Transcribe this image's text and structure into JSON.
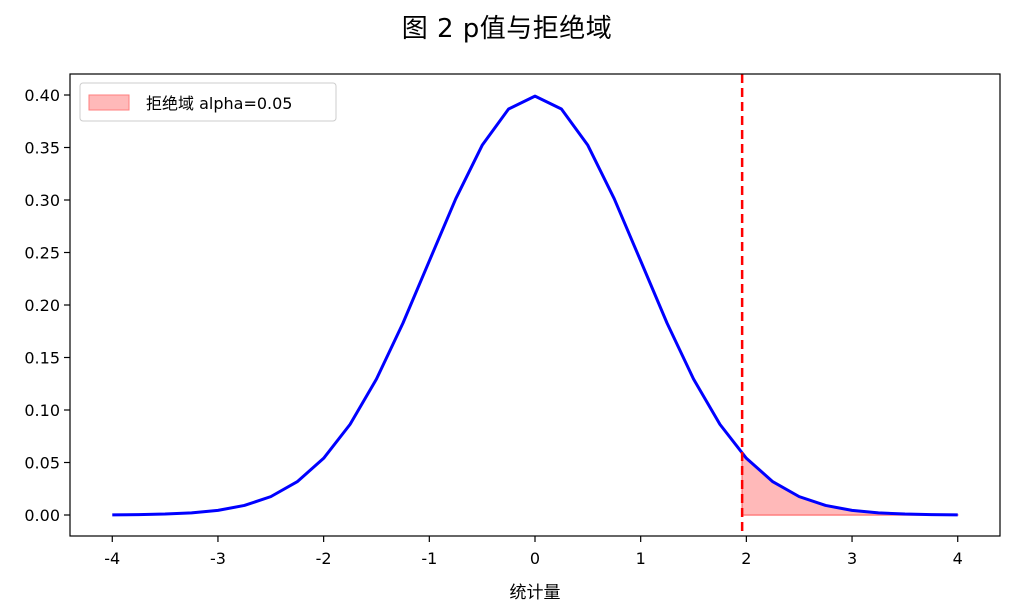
{
  "chart_data": {
    "type": "line",
    "title": "图 2   p值与拒绝域",
    "xlabel": "统计量",
    "ylabel": "",
    "xlim": [
      -4.4,
      4.4
    ],
    "ylim": [
      -0.02,
      0.42
    ],
    "x_ticks": [
      -4,
      -3,
      -2,
      -1,
      0,
      1,
      2,
      3,
      4
    ],
    "x_tick_labels": [
      "-4",
      "-3",
      "-2",
      "-1",
      "0",
      "1",
      "2",
      "3",
      "4"
    ],
    "y_ticks": [
      0.0,
      0.05,
      0.1,
      0.15,
      0.2,
      0.25,
      0.3,
      0.35,
      0.4
    ],
    "y_tick_labels": [
      "0.00",
      "0.05",
      "0.10",
      "0.15",
      "0.20",
      "0.25",
      "0.30",
      "0.35",
      "0.40"
    ],
    "series": [
      {
        "kind": "line",
        "color": "#0000ff",
        "x": [
          -4.0,
          -3.75,
          -3.5,
          -3.25,
          -3.0,
          -2.75,
          -2.5,
          -2.25,
          -2.0,
          -1.75,
          -1.5,
          -1.25,
          -1.0,
          -0.75,
          -0.5,
          -0.25,
          0.0,
          0.25,
          0.5,
          0.75,
          1.0,
          1.25,
          1.5,
          1.75,
          2.0,
          2.25,
          2.5,
          2.75,
          3.0,
          3.25,
          3.5,
          3.75,
          4.0
        ],
        "y": [
          0.0001,
          0.0004,
          0.0009,
          0.002,
          0.0044,
          0.0091,
          0.0175,
          0.0317,
          0.054,
          0.0863,
          0.1295,
          0.1826,
          0.242,
          0.3011,
          0.3521,
          0.3867,
          0.3989,
          0.3867,
          0.3521,
          0.3011,
          0.242,
          0.1826,
          0.1295,
          0.0863,
          0.054,
          0.0317,
          0.0175,
          0.0091,
          0.0044,
          0.002,
          0.0009,
          0.0004,
          0.0001
        ]
      },
      {
        "kind": "area",
        "name": "拒绝域 alpha=0.05",
        "color": "#ff7f7f",
        "x": [
          1.96,
          2.0,
          2.25,
          2.5,
          2.75,
          3.0,
          3.25,
          3.5,
          3.75,
          4.0
        ],
        "y": [
          0.0584,
          0.054,
          0.0317,
          0.0175,
          0.0091,
          0.0044,
          0.002,
          0.0009,
          0.0004,
          0.0001
        ]
      }
    ],
    "vline": {
      "x": 1.96,
      "color": "#ff0000",
      "style": "dashed"
    },
    "legend": {
      "position": "top-left",
      "entries": [
        "拒绝域 alpha=0.05"
      ]
    },
    "grid": false
  }
}
